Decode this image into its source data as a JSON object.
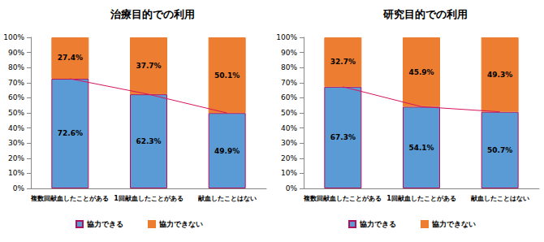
{
  "chart_data": [
    {
      "type": "bar",
      "title": "治療目的での利用",
      "categories": [
        "複数回献血したことがある",
        "1回献血したことがある",
        "献血したことはない"
      ],
      "series": [
        {
          "name": "協力できる",
          "color": "#5b9bd5",
          "values": [
            72.6,
            62.3,
            49.9
          ],
          "value_labels": [
            "72.6%",
            "62.3%",
            "49.9%"
          ]
        },
        {
          "name": "協力できない",
          "color": "#ed7d31",
          "values": [
            27.4,
            37.7,
            50.1
          ],
          "value_labels": [
            "27.4%",
            "37.7%",
            "50.1%"
          ]
        }
      ],
      "ylim": [
        0,
        100
      ],
      "yticks": [
        {
          "value": 0,
          "label": "0%"
        },
        {
          "value": 10,
          "label": "10%"
        },
        {
          "value": 20,
          "label": "20%"
        },
        {
          "value": 30,
          "label": "30%"
        },
        {
          "value": 40,
          "label": "40%"
        },
        {
          "value": 50,
          "label": "50%"
        },
        {
          "value": 60,
          "label": "60%"
        },
        {
          "value": 70,
          "label": "70%"
        },
        {
          "value": 80,
          "label": "80%"
        },
        {
          "value": 90,
          "label": "90%"
        },
        {
          "value": 100,
          "label": "100%"
        }
      ],
      "stacked": true,
      "data_labels": true,
      "legend": "bottom",
      "grid": false
    },
    {
      "type": "bar",
      "title": "研究目的での利用",
      "categories": [
        "複数回献血したことがある",
        "1回献血したことがある",
        "献血したことはない"
      ],
      "series": [
        {
          "name": "協力できる",
          "color": "#5b9bd5",
          "values": [
            67.3,
            54.1,
            50.7
          ],
          "value_labels": [
            "67.3%",
            "54.1%",
            "50.7%"
          ]
        },
        {
          "name": "協力できない",
          "color": "#ed7d31",
          "values": [
            32.7,
            45.9,
            49.3
          ],
          "value_labels": [
            "32.7%",
            "45.9%",
            "49.3%"
          ]
        }
      ],
      "ylim": [
        0,
        100
      ],
      "yticks": [
        {
          "value": 0,
          "label": "0%"
        },
        {
          "value": 10,
          "label": "10%"
        },
        {
          "value": 20,
          "label": "20%"
        },
        {
          "value": 30,
          "label": "30%"
        },
        {
          "value": 40,
          "label": "40%"
        },
        {
          "value": 50,
          "label": "50%"
        },
        {
          "value": 60,
          "label": "60%"
        },
        {
          "value": 70,
          "label": "70%"
        },
        {
          "value": 80,
          "label": "80%"
        },
        {
          "value": 90,
          "label": "90%"
        },
        {
          "value": 100,
          "label": "100%"
        }
      ],
      "stacked": true,
      "data_labels": true,
      "legend": "bottom",
      "grid": false
    }
  ]
}
